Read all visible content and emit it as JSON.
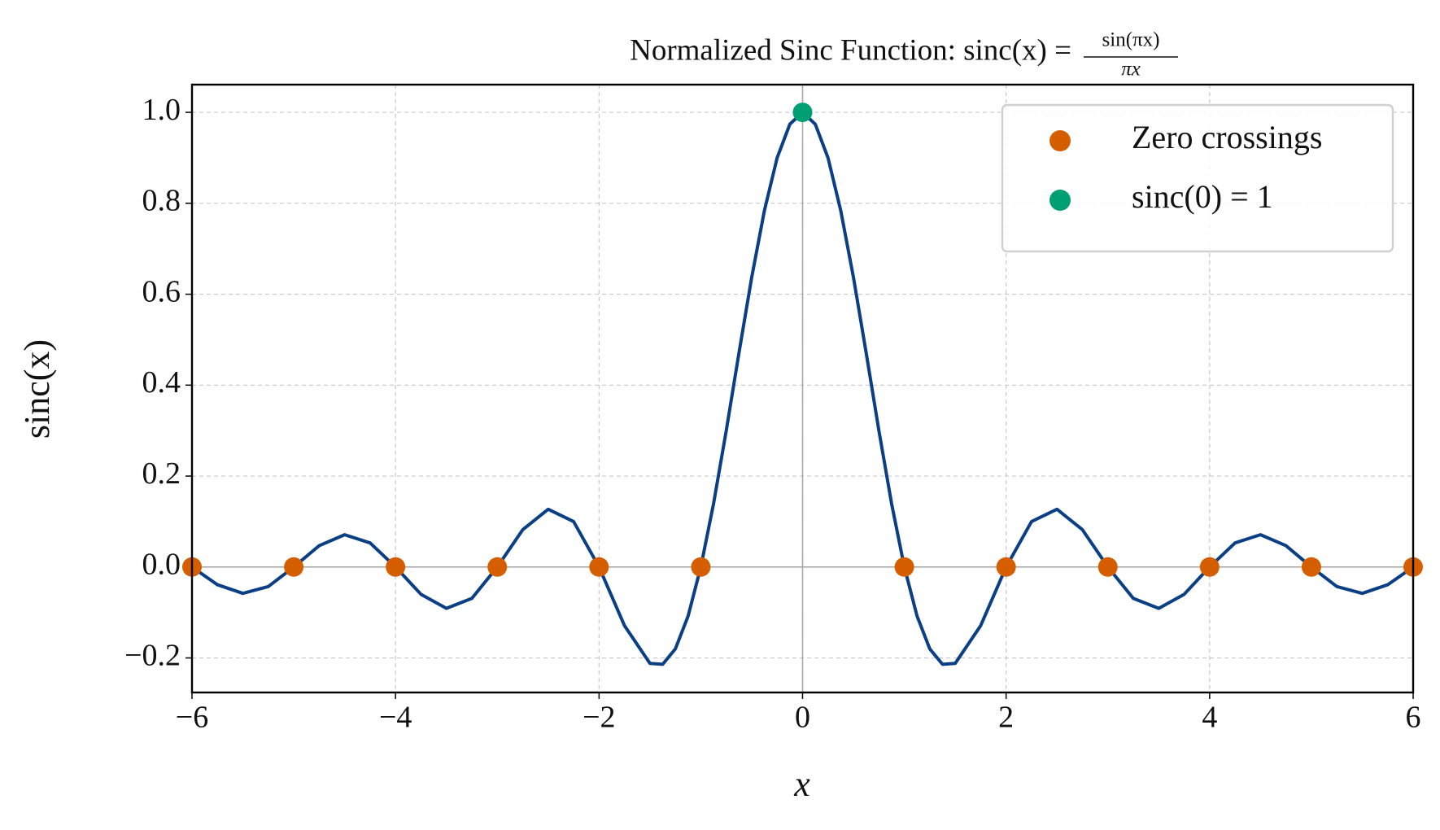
{
  "chart_data": {
    "type": "line",
    "title": "Normalized Sinc Function: sinc(x) =",
    "title_fraction": {
      "numerator": "sin(πx)",
      "denominator": "πx"
    },
    "x_label": "x",
    "y_label": "sinc(x)",
    "series": [
      {
        "type": "line",
        "color": "#0a3f85",
        "x": [
          -6,
          -5.75,
          -5.5,
          -5.25,
          -5,
          -4.75,
          -4.5,
          -4.25,
          -4,
          -3.75,
          -3.5,
          -3.25,
          -3,
          -2.75,
          -2.5,
          -2.25,
          -2,
          -1.75,
          -1.5,
          -1.375,
          -1.25,
          -1.125,
          -1,
          -0.875,
          -0.75,
          -0.625,
          -0.5,
          -0.375,
          -0.25,
          -0.125,
          0,
          0.125,
          0.25,
          0.375,
          0.5,
          0.625,
          0.75,
          0.875,
          1,
          1.125,
          1.25,
          1.375,
          1.5,
          1.75,
          2,
          2.25,
          2.5,
          2.75,
          3,
          3.25,
          3.5,
          3.75,
          4,
          4.25,
          4.5,
          4.75,
          5,
          5.25,
          5.5,
          5.75,
          6
        ],
        "values": [
          0,
          -0.039,
          -0.058,
          -0.043,
          0,
          0.047,
          0.071,
          0.053,
          0,
          -0.06,
          -0.091,
          -0.069,
          0,
          0.082,
          0.127,
          0.1,
          0,
          -0.129,
          -0.212,
          -0.214,
          -0.18,
          -0.108,
          0,
          0.139,
          0.3,
          0.471,
          0.637,
          0.784,
          0.9,
          0.974,
          1,
          0.974,
          0.9,
          0.784,
          0.637,
          0.471,
          0.3,
          0.139,
          0,
          -0.108,
          -0.18,
          -0.214,
          -0.212,
          -0.129,
          0,
          0.1,
          0.127,
          0.082,
          0,
          -0.069,
          -0.091,
          -0.06,
          0,
          0.053,
          0.071,
          0.047,
          0,
          -0.043,
          -0.058,
          -0.039,
          0
        ]
      },
      {
        "type": "scatter",
        "name": "Zero crossings",
        "color": "#d55e00",
        "x": [
          -6,
          -5,
          -4,
          -3,
          -2,
          -1,
          1,
          2,
          3,
          4,
          5,
          6
        ],
        "values": [
          0,
          0,
          0,
          0,
          0,
          0,
          0,
          0,
          0,
          0,
          0,
          0
        ]
      },
      {
        "type": "scatter",
        "name": "sinc(0) = 1",
        "color": "#009e73",
        "x": [
          0
        ],
        "values": [
          1
        ]
      }
    ],
    "xlim": [
      -6,
      6
    ],
    "xticks": [
      {
        "value": -6,
        "label": "−6"
      },
      {
        "value": -4,
        "label": "−4"
      },
      {
        "value": -2,
        "label": "−2"
      },
      0,
      2,
      4,
      6
    ],
    "ylim": [
      -0.276,
      1.061
    ],
    "yticks": [
      {
        "value": -0.2,
        "label": "−0.2"
      },
      {
        "value": 0,
        "label": "0.0"
      },
      0.2,
      0.4,
      0.6,
      0.8,
      {
        "value": 1,
        "label": "1.0"
      }
    ],
    "grid": true,
    "legend": "upper right"
  }
}
